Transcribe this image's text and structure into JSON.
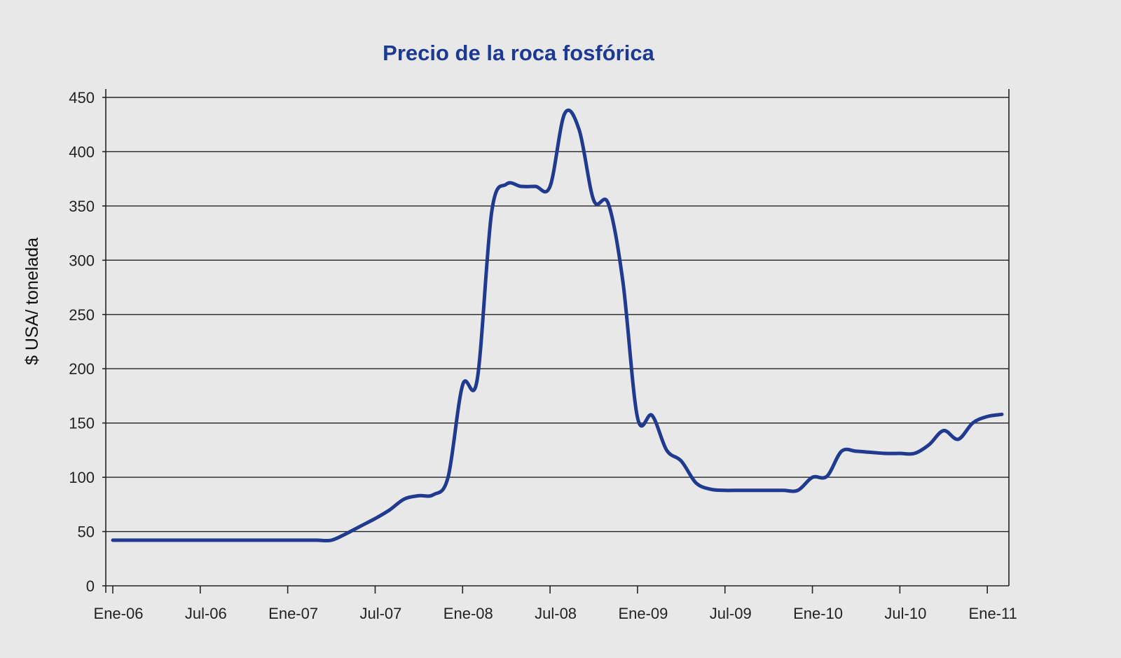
{
  "chart_data": {
    "type": "line",
    "title": "Precio de la roca fosfórica",
    "ylabel": "$ USA/ tonelada",
    "xlabel": "",
    "x_ticks": [
      "Ene-06",
      "Jul-06",
      "Ene-07",
      "Jul-07",
      "Ene-08",
      "Jul-08",
      "Ene-09",
      "Jul-09",
      "Ene-10",
      "Jul-10",
      "Ene-11"
    ],
    "y_ticks": [
      "0",
      "50",
      "100",
      "150",
      "200",
      "250",
      "300",
      "350",
      "400",
      "450"
    ],
    "ylim": [
      0,
      450
    ],
    "xlim": [
      "2006-01",
      "2011-02"
    ],
    "grid": "horizontal",
    "series_color": "#1f3a8f",
    "title_color": "#1c3a93",
    "series": [
      {
        "x": [
          "2006-01",
          "2006-04",
          "2006-07",
          "2006-10",
          "2007-01",
          "2007-02",
          "2007-03",
          "2007-04",
          "2007-05",
          "2007-06",
          "2007-07",
          "2007-08",
          "2007-09",
          "2007-10",
          "2007-11",
          "2007-12",
          "2008-01",
          "2008-02",
          "2008-03",
          "2008-04",
          "2008-05",
          "2008-06",
          "2008-07",
          "2008-08",
          "2008-09",
          "2008-10",
          "2008-11",
          "2008-12",
          "2009-01",
          "2009-02",
          "2009-03",
          "2009-04",
          "2009-05",
          "2009-06",
          "2009-07",
          "2009-08",
          "2009-09",
          "2009-10",
          "2009-11",
          "2009-12",
          "2010-01",
          "2010-02",
          "2010-03",
          "2010-04",
          "2010-05",
          "2010-06",
          "2010-07",
          "2010-08",
          "2010-09",
          "2010-10",
          "2010-11",
          "2010-12",
          "2011-01",
          "2011-02"
        ],
        "values": [
          42,
          42,
          42,
          42,
          42,
          42,
          42,
          42,
          48,
          55,
          62,
          70,
          80,
          83,
          84,
          100,
          185,
          190,
          345,
          370,
          368,
          368,
          368,
          435,
          420,
          355,
          352,
          280,
          155,
          157,
          125,
          115,
          95,
          89,
          88,
          88,
          88,
          88,
          88,
          88,
          100,
          101,
          124,
          124,
          123,
          122,
          122,
          122,
          130,
          143,
          135,
          150,
          156,
          158
        ]
      }
    ]
  }
}
